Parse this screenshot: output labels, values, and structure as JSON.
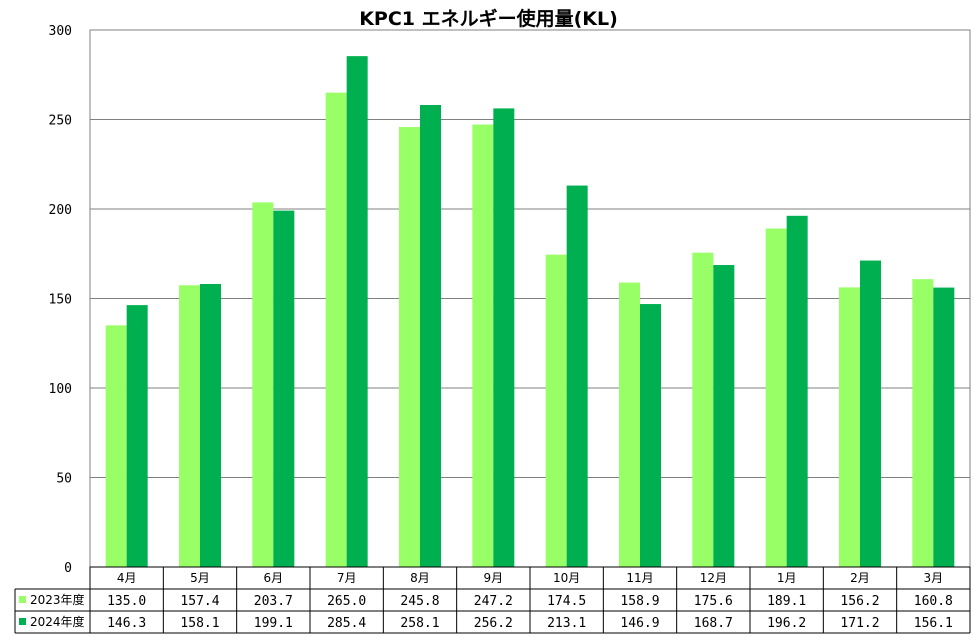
{
  "chart_data": {
    "type": "bar",
    "title": "KPC1 エネルギー使用量(KL)",
    "categories": [
      "4月",
      "5月",
      "6月",
      "7月",
      "8月",
      "9月",
      "10月",
      "11月",
      "12月",
      "1月",
      "2月",
      "3月"
    ],
    "series": [
      {
        "name": "2023年度",
        "color": "#99ff66",
        "values": [
          135.0,
          157.4,
          203.7,
          265.0,
          245.8,
          247.2,
          174.5,
          158.9,
          175.6,
          189.1,
          156.2,
          160.8
        ],
        "labels": [
          "135.0",
          "157.4",
          "203.7",
          "265.0",
          "245.8",
          "247.2",
          "174.5",
          "158.9",
          "175.6",
          "189.1",
          "156.2",
          "160.8"
        ]
      },
      {
        "name": "2024年度",
        "color": "#00b050",
        "values": [
          146.3,
          158.1,
          199.1,
          285.4,
          258.1,
          256.2,
          213.1,
          146.9,
          168.7,
          196.2,
          171.2,
          156.1
        ],
        "labels": [
          "146.3",
          "158.1",
          "199.1",
          "285.4",
          "258.1",
          "256.2",
          "213.1",
          "146.9",
          "168.7",
          "196.2",
          "171.2",
          "156.1"
        ]
      }
    ],
    "ylim": [
      0,
      300
    ],
    "yticks": [
      "0",
      "50",
      "100",
      "150",
      "200",
      "250",
      "300"
    ],
    "grid": true,
    "legend": "data-table"
  }
}
